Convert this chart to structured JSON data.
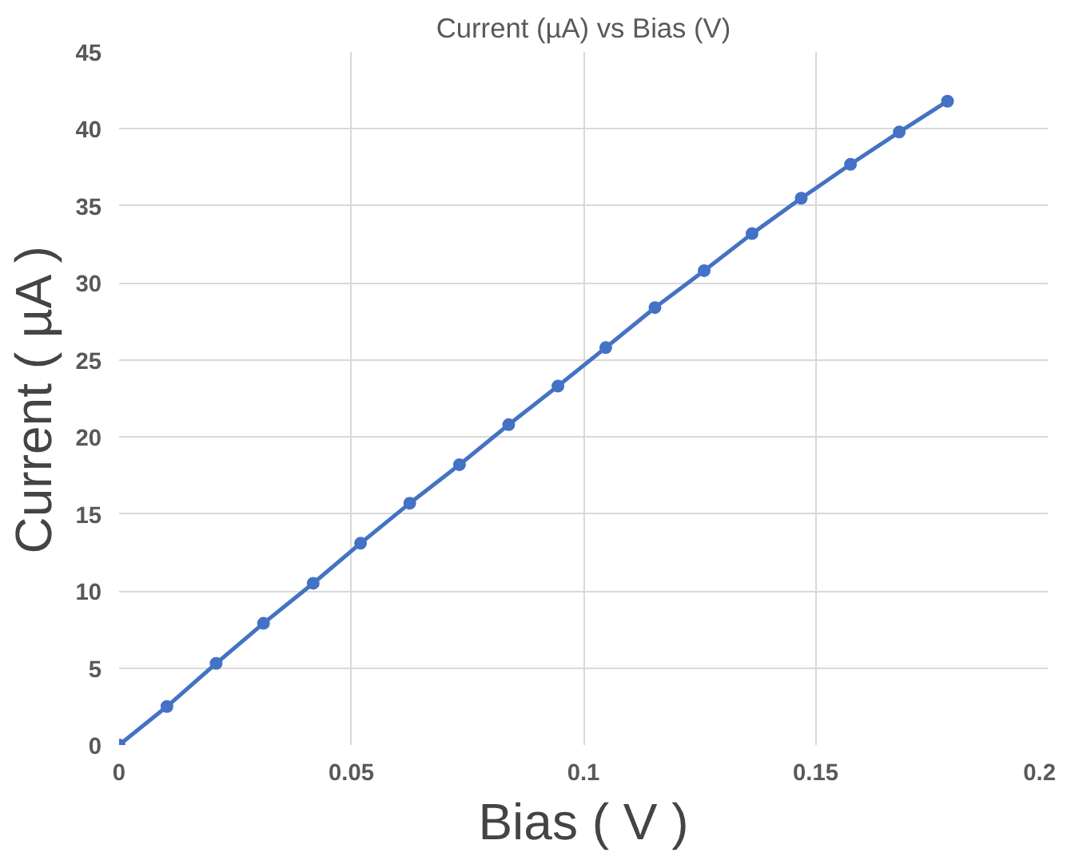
{
  "chart_data": {
    "type": "line",
    "title": "Current (µA) vs Bias (V)",
    "xlabel": "Bias ( V )",
    "ylabel": "Current ( µA )",
    "x": [
      0,
      0.0103,
      0.0209,
      0.0311,
      0.0418,
      0.052,
      0.0626,
      0.0733,
      0.0839,
      0.0945,
      0.1048,
      0.1154,
      0.126,
      0.1363,
      0.1469,
      0.1575,
      0.168,
      0.1784
    ],
    "series": [
      {
        "color": "#4472c4",
        "values": [
          0,
          2.5,
          5.3,
          7.9,
          10.5,
          13.1,
          15.7,
          18.2,
          20.8,
          23.3,
          25.8,
          28.4,
          30.8,
          33.2,
          35.5,
          37.7,
          39.8,
          41.8
        ]
      }
    ],
    "xlim": [
      0,
      0.2
    ],
    "xticks": [
      0,
      0.05,
      0.1,
      0.15,
      0.2
    ],
    "ylim": [
      0,
      45
    ],
    "yticks": [
      0,
      5,
      10,
      15,
      20,
      25,
      30,
      35,
      40,
      45
    ],
    "grid": true,
    "marker": "circle",
    "line_style": "solid"
  }
}
